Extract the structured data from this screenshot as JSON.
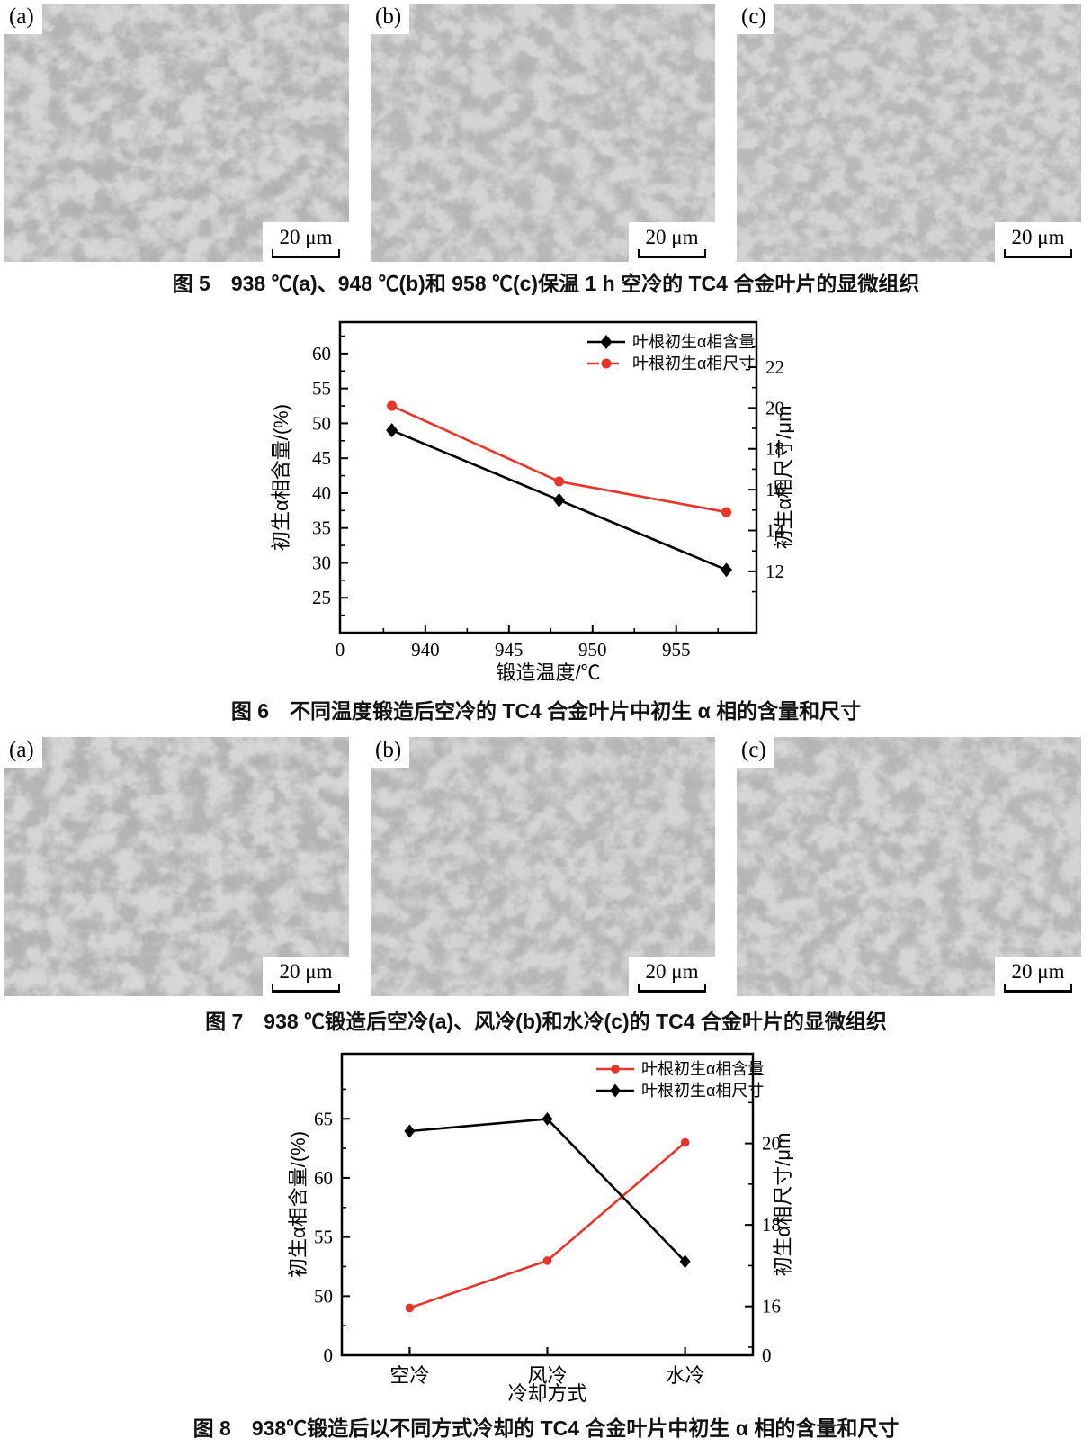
{
  "figures": {
    "fig5": {
      "caption": "图 5　938 ℃(a)、948 ℃(b)和 958 ℃(c)保温 1 h 空冷的 TC4 合金叶片的显微组织",
      "panels": [
        {
          "label": "(a)",
          "scale": "20 μm"
        },
        {
          "label": "(b)",
          "scale": "20 μm"
        },
        {
          "label": "(c)",
          "scale": "20 μm"
        }
      ]
    },
    "fig6": {
      "caption": "图 6　不同温度锻造后空冷的 TC4 合金叶片中初生 α 相的含量和尺寸"
    },
    "fig7": {
      "caption": "图 7　938 ℃锻造后空冷(a)、风冷(b)和水冷(c)的 TC4 合金叶片的显微组织",
      "panels": [
        {
          "label": "(a)",
          "scale": "20 μm"
        },
        {
          "label": "(b)",
          "scale": "20 μm"
        },
        {
          "label": "(c)",
          "scale": "20 μm"
        }
      ]
    },
    "fig8": {
      "caption": "图 8　938℃锻造后以不同方式冷却的 TC4 合金叶片中初生 α 相的含量和尺寸"
    }
  },
  "colors": {
    "accent_red": "#e8352a",
    "line_black": "#000000"
  },
  "chart_data": [
    {
      "id": "fig6",
      "type": "line",
      "title": "",
      "xlabel": "锻造温度/℃",
      "ylabel_left": "初生α相含量/(%)",
      "ylabel_right": "初生α相尺寸/μm",
      "x": [
        938,
        948,
        958
      ],
      "series": [
        {
          "name": "叶根初生α相含量",
          "axis": "left",
          "color": "#000000",
          "marker": "diamond",
          "marker_size": 6.5,
          "line": "solid",
          "values": [
            49,
            39,
            29
          ]
        },
        {
          "name": "叶根初生α相尺寸",
          "axis": "right",
          "color": "#e8352a",
          "marker": "circle",
          "marker_size": 5.5,
          "line": "solid",
          "legend_line": "dash",
          "values": [
            20.1,
            16.4,
            14.9
          ]
        }
      ],
      "x_range": [
        934.9,
        959.8
      ],
      "x_major": [
        {
          "v": 934.9,
          "label": "0",
          "tick": false
        },
        {
          "v": 940,
          "label": "940"
        },
        {
          "v": 945,
          "label": "945"
        },
        {
          "v": 950,
          "label": "950"
        },
        {
          "v": 955,
          "label": "955"
        }
      ],
      "x_minor": [
        937.5,
        942.5,
        947.5,
        952.5,
        957.5
      ],
      "left_range": [
        20,
        64.5
      ],
      "left_major": [
        25,
        30,
        35,
        40,
        45,
        50,
        55,
        60
      ],
      "left_minor": [
        22.5,
        27.5,
        32.5,
        37.5,
        42.5,
        47.5,
        52.5,
        57.5,
        62.5
      ],
      "right_range": [
        9,
        24.2
      ],
      "right_major": [
        12,
        14,
        16,
        18,
        20,
        22
      ],
      "right_minor": [
        11,
        13,
        15,
        17,
        19,
        21,
        23
      ],
      "grid": false,
      "legend_pos": "top-right-inside"
    },
    {
      "id": "fig8",
      "type": "line",
      "title": "",
      "xlabel": "冷却方式",
      "ylabel_left": "初生α相含量/(%)",
      "ylabel_right": "初生α相尺寸/μm",
      "categories": [
        "空冷",
        "风冷",
        "水冷"
      ],
      "cat_fracs": [
        0.165,
        0.5,
        0.835
      ],
      "series": [
        {
          "name": "叶根初生α相含量",
          "axis": "left",
          "color": "#e8352a",
          "marker": "circle",
          "marker_size": 4.8,
          "line": "solid",
          "values": [
            49,
            53,
            63
          ]
        },
        {
          "name": "叶根初生α相尺寸",
          "axis": "right",
          "color": "#000000",
          "marker": "diamond",
          "marker_size": 6,
          "line": "solid",
          "values": [
            20.3,
            20.6,
            17.1
          ]
        }
      ],
      "left_range": [
        45,
        70.5
      ],
      "left_major": [
        {
          "v": 45,
          "label": "0"
        },
        {
          "v": 50,
          "label": "50"
        },
        {
          "v": 55,
          "label": "55"
        },
        {
          "v": 60,
          "label": "60"
        },
        {
          "v": 65,
          "label": "65"
        }
      ],
      "left_minor": [
        47.5,
        52.5,
        57.5,
        62.5,
        67.5
      ],
      "right_range": [
        14.8,
        22.2
      ],
      "right_major": [
        {
          "v": 14.8,
          "label": "0"
        },
        {
          "v": 16,
          "label": "16"
        },
        {
          "v": 18,
          "label": "18"
        },
        {
          "v": 20,
          "label": "20"
        }
      ],
      "right_minor": [
        15,
        17,
        19,
        21
      ],
      "grid": false,
      "legend_pos": "top-right-inside"
    }
  ]
}
